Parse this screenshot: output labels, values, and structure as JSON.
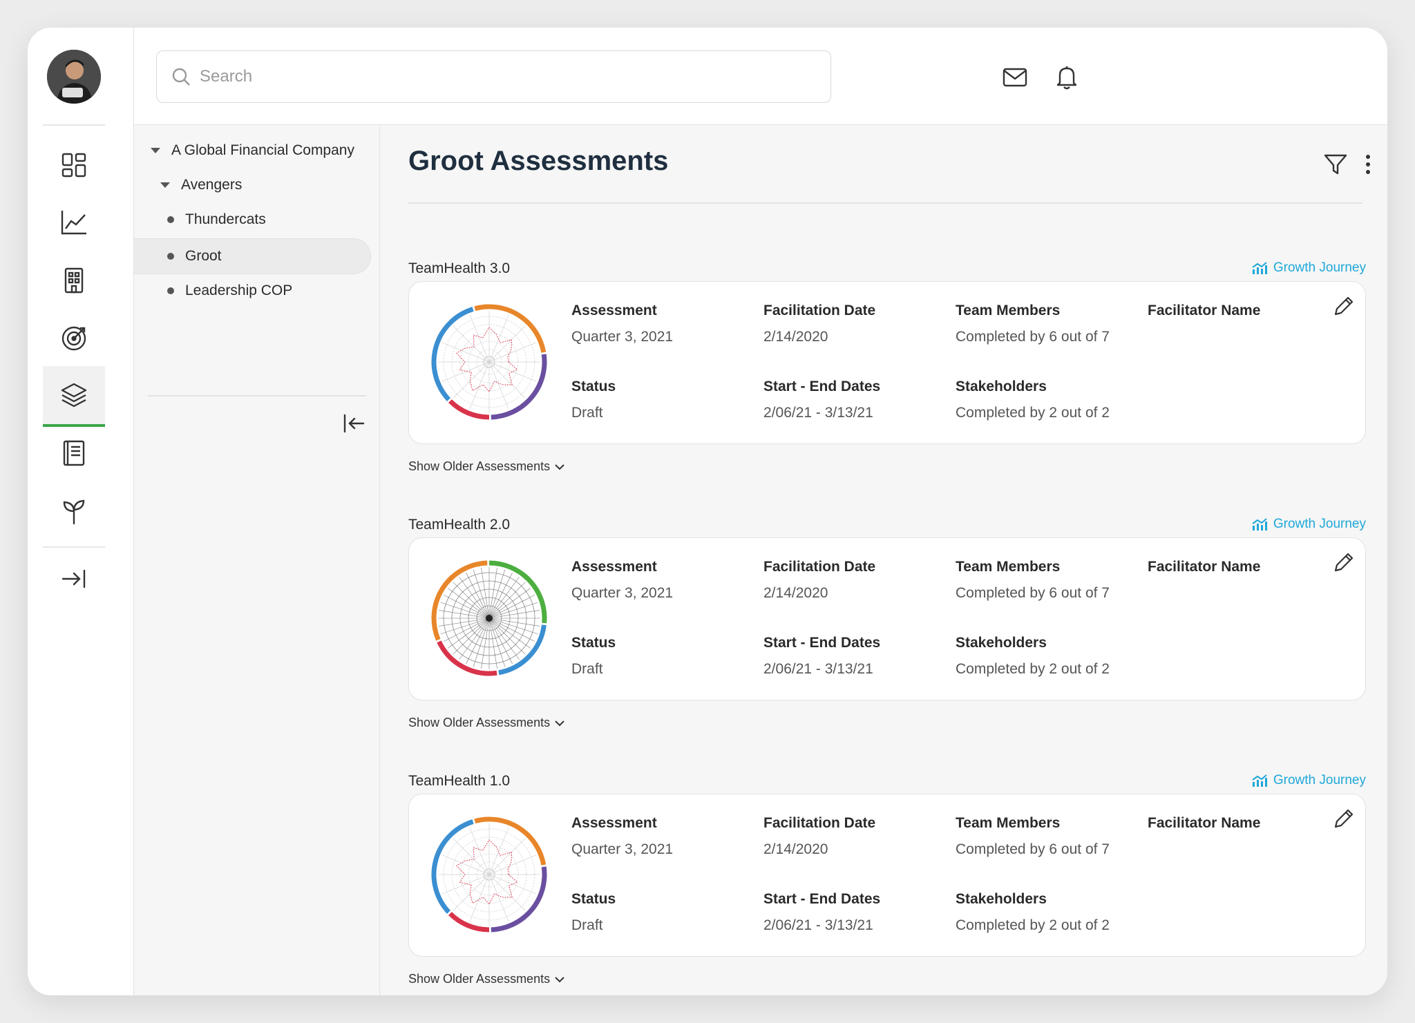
{
  "search": {
    "placeholder": "Search"
  },
  "rail": {
    "items": [
      {
        "name": "dashboard-icon"
      },
      {
        "name": "analytics-icon"
      },
      {
        "name": "building-icon"
      },
      {
        "name": "target-icon"
      },
      {
        "name": "layers-icon",
        "active": true
      },
      {
        "name": "book-icon"
      },
      {
        "name": "sprout-icon"
      },
      {
        "name": "expand-icon"
      }
    ]
  },
  "tree": {
    "org": "A Global Financial Company",
    "group": "Avengers",
    "teams": [
      "Thundercats",
      "Groot",
      "Leadership COP"
    ],
    "selected": "Groot"
  },
  "main": {
    "title": "Groot Assessments"
  },
  "labels": {
    "assessment": "Assessment",
    "facilitation_date": "Facilitation Date",
    "team_members": "Team Members",
    "facilitator_name": "Facilitator Name",
    "status": "Status",
    "start_end": "Start - End Dates",
    "stakeholders": "Stakeholders",
    "growth_journey": "Growth Journey",
    "show_older": "Show Older Assessments"
  },
  "assessments": [
    {
      "title": "TeamHealth 3.0",
      "assessment": "Quarter 3, 2021",
      "facilitation_date": "2/14/2020",
      "team_members": "Completed by 6 out of 7",
      "status": "Draft",
      "start_end": "2/06/21 - 3/13/21",
      "stakeholders": "Completed by 2 out of 2"
    },
    {
      "title": "TeamHealth 2.0",
      "assessment": "Quarter 3, 2021",
      "facilitation_date": "2/14/2020",
      "team_members": "Completed by 6 out of 7",
      "status": "Draft",
      "start_end": "2/06/21 - 3/13/21",
      "stakeholders": "Completed by 2 out of 2"
    },
    {
      "title": "TeamHealth 1.0",
      "assessment": "Quarter 3, 2021",
      "facilitation_date": "2/14/2020",
      "team_members": "Completed by 6 out of 7",
      "status": "Draft",
      "start_end": "2/06/21 - 3/13/21",
      "stakeholders": "Completed by 2 out of 2"
    }
  ],
  "colors": {
    "accent_green": "#3aa54a",
    "link_blue": "#1ea7d8",
    "wheel_orange": "#e8862a",
    "wheel_green": "#4cae3f",
    "wheel_purple": "#6a4fa0",
    "wheel_red": "#d8334a",
    "wheel_blue": "#3b8fd1"
  }
}
